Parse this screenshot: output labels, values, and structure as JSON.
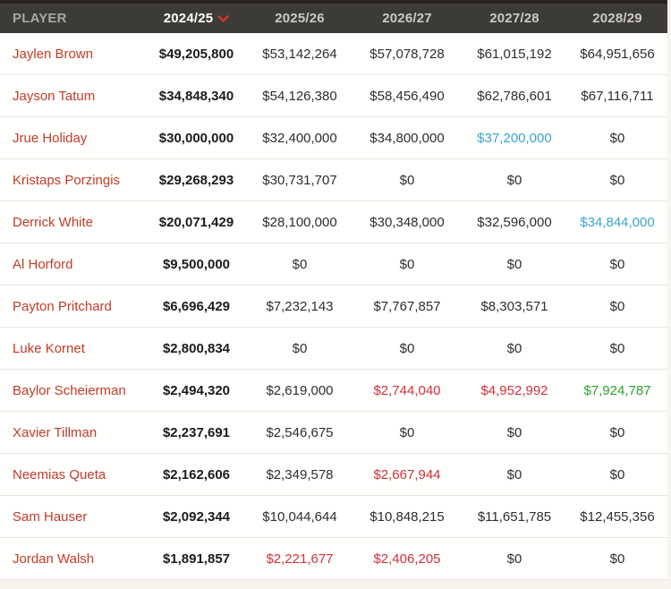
{
  "colors": {
    "page_bg": "#f7f4ed",
    "row_bg": "#fffffe",
    "row_divider": "#e7e5e0",
    "header_bg": "#3d3b38",
    "header_top_border": "#262523",
    "header_text_dim": "#a9a7a2",
    "header_text_year": "#cbc9c4",
    "header_text_active": "#ffffff",
    "sort_icon_red": "#c0392b",
    "player_name_red": "#c43a28",
    "value_default": "#2d2d2d",
    "value_bold": "#1b1b1b",
    "value_blue": "#3aa3d0",
    "value_red": "#d2303a",
    "value_green": "#2aa32c"
  },
  "table": {
    "sort": {
      "column": "2024/25",
      "direction": "desc"
    },
    "columns": [
      {
        "label": "PLAYER",
        "sorted": false
      },
      {
        "label": "2024/25",
        "sorted": true
      },
      {
        "label": "2025/26",
        "sorted": false
      },
      {
        "label": "2026/27",
        "sorted": false
      },
      {
        "label": "2027/28",
        "sorted": false
      },
      {
        "label": "2028/29",
        "sorted": false
      }
    ],
    "rows": [
      {
        "player": "Jaylen Brown",
        "values": [
          {
            "text": "$49,205,800"
          },
          {
            "text": "$53,142,264"
          },
          {
            "text": "$57,078,728"
          },
          {
            "text": "$61,015,192"
          },
          {
            "text": "$64,951,656"
          }
        ]
      },
      {
        "player": "Jayson Tatum",
        "values": [
          {
            "text": "$34,848,340"
          },
          {
            "text": "$54,126,380"
          },
          {
            "text": "$58,456,490"
          },
          {
            "text": "$62,786,601"
          },
          {
            "text": "$67,116,711"
          }
        ]
      },
      {
        "player": "Jrue Holiday",
        "values": [
          {
            "text": "$30,000,000"
          },
          {
            "text": "$32,400,000"
          },
          {
            "text": "$34,800,000"
          },
          {
            "text": "$37,200,000",
            "color": "blue"
          },
          {
            "text": "$0"
          }
        ]
      },
      {
        "player": "Kristaps Porzingis",
        "values": [
          {
            "text": "$29,268,293"
          },
          {
            "text": "$30,731,707"
          },
          {
            "text": "$0"
          },
          {
            "text": "$0"
          },
          {
            "text": "$0"
          }
        ]
      },
      {
        "player": "Derrick White",
        "values": [
          {
            "text": "$20,071,429"
          },
          {
            "text": "$28,100,000"
          },
          {
            "text": "$30,348,000"
          },
          {
            "text": "$32,596,000"
          },
          {
            "text": "$34,844,000",
            "color": "blue"
          }
        ]
      },
      {
        "player": "Al Horford",
        "values": [
          {
            "text": "$9,500,000"
          },
          {
            "text": "$0"
          },
          {
            "text": "$0"
          },
          {
            "text": "$0"
          },
          {
            "text": "$0"
          }
        ]
      },
      {
        "player": "Payton Pritchard",
        "values": [
          {
            "text": "$6,696,429"
          },
          {
            "text": "$7,232,143"
          },
          {
            "text": "$7,767,857"
          },
          {
            "text": "$8,303,571"
          },
          {
            "text": "$0"
          }
        ]
      },
      {
        "player": "Luke Kornet",
        "values": [
          {
            "text": "$2,800,834"
          },
          {
            "text": "$0"
          },
          {
            "text": "$0"
          },
          {
            "text": "$0"
          },
          {
            "text": "$0"
          }
        ]
      },
      {
        "player": "Baylor Scheierman",
        "values": [
          {
            "text": "$2,494,320"
          },
          {
            "text": "$2,619,000"
          },
          {
            "text": "$2,744,040",
            "color": "red"
          },
          {
            "text": "$4,952,992",
            "color": "red"
          },
          {
            "text": "$7,924,787",
            "color": "green"
          }
        ]
      },
      {
        "player": "Xavier Tillman",
        "values": [
          {
            "text": "$2,237,691"
          },
          {
            "text": "$2,546,675"
          },
          {
            "text": "$0"
          },
          {
            "text": "$0"
          },
          {
            "text": "$0"
          }
        ]
      },
      {
        "player": "Neemias Queta",
        "values": [
          {
            "text": "$2,162,606"
          },
          {
            "text": "$2,349,578"
          },
          {
            "text": "$2,667,944",
            "color": "red"
          },
          {
            "text": "$0"
          },
          {
            "text": "$0"
          }
        ]
      },
      {
        "player": "Sam Hauser",
        "values": [
          {
            "text": "$2,092,344"
          },
          {
            "text": "$10,044,644"
          },
          {
            "text": "$10,848,215"
          },
          {
            "text": "$11,651,785"
          },
          {
            "text": "$12,455,356"
          }
        ]
      },
      {
        "player": "Jordan Walsh",
        "values": [
          {
            "text": "$1,891,857"
          },
          {
            "text": "$2,221,677",
            "color": "red"
          },
          {
            "text": "$2,406,205",
            "color": "red"
          },
          {
            "text": "$0"
          },
          {
            "text": "$0"
          }
        ]
      }
    ]
  }
}
